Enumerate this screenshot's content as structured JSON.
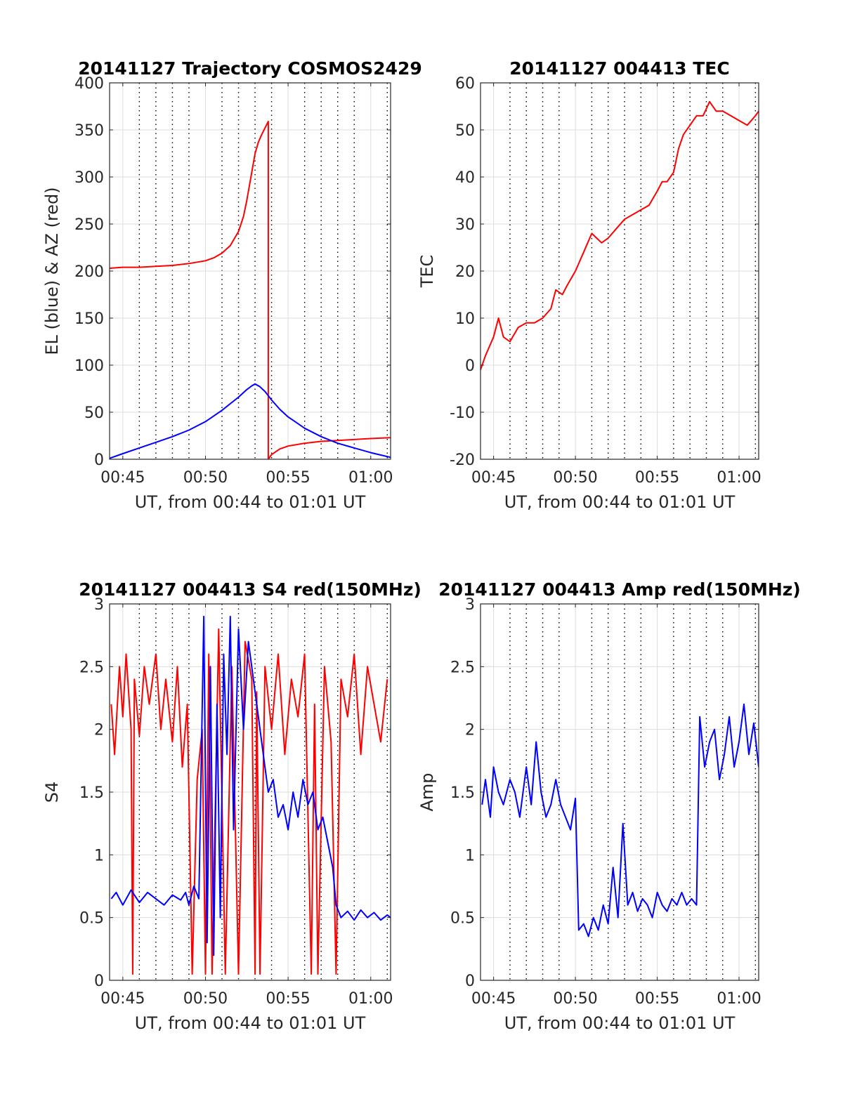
{
  "chart_data": [
    {
      "type": "line",
      "title": "20141127 Trajectory COSMOS2429",
      "xlabel": "UT, from 00:44 to 01:01 UT",
      "ylabel": "EL (blue) & AZ (red)",
      "xlim": [
        44.2,
        61.2
      ],
      "ylim": [
        0,
        400
      ],
      "xticks": [
        45,
        50,
        55,
        60
      ],
      "xtick_labels": [
        "00:45",
        "00:50",
        "00:55",
        "01:00"
      ],
      "yticks": [
        0,
        50,
        100,
        150,
        200,
        250,
        300,
        350,
        400
      ],
      "ytick_labels": [
        "0",
        "50",
        "100",
        "150",
        "200",
        "250",
        "300",
        "350",
        "400"
      ],
      "minor_grid": true,
      "series": [
        {
          "color": "#ff0000",
          "x": [
            44.2,
            45,
            46,
            47,
            48,
            49,
            50,
            50.5,
            51,
            51.5,
            52,
            52.3,
            52.5,
            52.8,
            53,
            53.2,
            53.4,
            53.6,
            53.8,
            53.8,
            54,
            54.5,
            55,
            56,
            57,
            58,
            59,
            60,
            61.2
          ],
          "y": [
            203,
            204,
            204,
            205,
            206,
            208,
            211,
            214,
            219,
            227,
            242,
            258,
            275,
            305,
            325,
            337,
            345,
            352,
            359,
            0,
            5,
            11,
            14,
            17,
            19,
            20,
            21,
            22,
            23
          ]
        },
        {
          "color": "#0000ff",
          "x": [
            44.2,
            45,
            46,
            47,
            48,
            49,
            50,
            50.5,
            51,
            51.5,
            52,
            52.5,
            52.8,
            53,
            53.3,
            53.6,
            54,
            54.5,
            55,
            55.5,
            56,
            57,
            58,
            59,
            60,
            61.2
          ],
          "y": [
            1,
            6,
            12,
            18,
            24,
            31,
            40,
            46,
            52,
            59,
            66,
            74,
            78,
            80,
            77,
            72,
            63,
            53,
            45,
            39,
            33,
            24,
            17,
            12,
            7,
            2
          ]
        }
      ]
    },
    {
      "type": "line",
      "title": "20141127 004413 TEC",
      "xlabel": "UT, from 00:44 to 01:01 UT",
      "ylabel": "TEC",
      "xlim": [
        44.2,
        61.2
      ],
      "ylim": [
        -20,
        60
      ],
      "xticks": [
        45,
        50,
        55,
        60
      ],
      "xtick_labels": [
        "00:45",
        "00:50",
        "00:55",
        "01:00"
      ],
      "yticks": [
        -20,
        -10,
        0,
        10,
        20,
        30,
        40,
        50,
        60
      ],
      "ytick_labels": [
        "-20",
        "-10",
        "0",
        "10",
        "20",
        "30",
        "40",
        "50",
        "60"
      ],
      "minor_grid": true,
      "series": [
        {
          "color": "#ff0000",
          "x": [
            44.2,
            44.5,
            45,
            45.3,
            45.6,
            46,
            46.5,
            47,
            47.5,
            48,
            48.5,
            48.8,
            49.2,
            49.5,
            50,
            50.5,
            51,
            51.3,
            51.6,
            52,
            52.5,
            53,
            53.5,
            54,
            54.5,
            55,
            55.3,
            55.6,
            56,
            56.3,
            56.6,
            57,
            57.4,
            57.8,
            58.2,
            58.6,
            59,
            59.5,
            60,
            60.5,
            61,
            61.2
          ],
          "y": [
            -1,
            2,
            6,
            10,
            6,
            5,
            8,
            9,
            9,
            10,
            12,
            16,
            15,
            17,
            20,
            24,
            28,
            27,
            26,
            27,
            29,
            31,
            32,
            33,
            34,
            37,
            39,
            39,
            41,
            46,
            49,
            51,
            53,
            53,
            56,
            54,
            54,
            53,
            52,
            51,
            53,
            54
          ]
        }
      ]
    },
    {
      "type": "line",
      "title": "20141127 004413 S4 red(150MHz)",
      "xlabel": "UT, from 00:44 to 01:01 UT",
      "ylabel": "S4",
      "xlim": [
        44.2,
        61.2
      ],
      "ylim": [
        0,
        3
      ],
      "xticks": [
        45,
        50,
        55,
        60
      ],
      "xtick_labels": [
        "00:45",
        "00:50",
        "00:55",
        "01:00"
      ],
      "yticks": [
        0,
        0.5,
        1,
        1.5,
        2,
        2.5,
        3
      ],
      "ytick_labels": [
        "0",
        "0.5",
        "1",
        "1.5",
        "2",
        "2.5",
        "3"
      ],
      "minor_grid": true,
      "series": [
        {
          "color": "#ff0000",
          "x": [
            44.3,
            44.5,
            44.8,
            45.0,
            45.2,
            45.5,
            45.6,
            45.7,
            46.0,
            46.3,
            46.6,
            47.0,
            47.3,
            47.6,
            48.0,
            48.3,
            48.6,
            48.9,
            49.2,
            49.5,
            49.8,
            50.0,
            50.2,
            50.4,
            50.8,
            51.2,
            51.6,
            52.0,
            52.4,
            52.8,
            53.0,
            53.1,
            53.3,
            53.6,
            54.0,
            54.4,
            54.8,
            55.2,
            55.6,
            56.0,
            56.4,
            56.6,
            56.8,
            57.2,
            57.6,
            57.9,
            58.2,
            58.6,
            59.0,
            59.4,
            59.8,
            60.2,
            60.6,
            61.0
          ],
          "y": [
            2.2,
            1.8,
            2.5,
            2.1,
            2.6,
            2.0,
            0.05,
            2.4,
            1.95,
            2.5,
            2.2,
            2.6,
            2.0,
            2.4,
            1.9,
            2.5,
            1.7,
            2.2,
            0.05,
            1.6,
            2.0,
            0.05,
            2.6,
            0.05,
            2.8,
            0.05,
            2.5,
            0.05,
            2.7,
            2.4,
            0.05,
            2.3,
            0.05,
            2.5,
            2.0,
            2.6,
            1.8,
            2.4,
            2.1,
            2.6,
            0.05,
            2.2,
            0.05,
            2.5,
            1.9,
            0.05,
            2.4,
            2.1,
            2.6,
            1.8,
            2.5,
            2.2,
            1.9,
            2.4
          ]
        },
        {
          "color": "#0000ff",
          "x": [
            44.3,
            44.6,
            45.0,
            45.5,
            46.0,
            46.5,
            47.0,
            47.5,
            48.0,
            48.5,
            48.8,
            49.0,
            49.3,
            49.6,
            49.9,
            50.1,
            50.3,
            50.5,
            50.7,
            50.9,
            51.1,
            51.3,
            51.5,
            51.7,
            52.0,
            52.3,
            52.6,
            52.9,
            53.2,
            53.5,
            53.8,
            54.1,
            54.4,
            54.7,
            55.0,
            55.3,
            55.6,
            55.9,
            56.2,
            56.5,
            56.8,
            57.1,
            57.4,
            57.7,
            57.9,
            58.2,
            58.6,
            59.0,
            59.4,
            59.8,
            60.2,
            60.6,
            61.0,
            61.2
          ],
          "y": [
            0.65,
            0.7,
            0.6,
            0.72,
            0.62,
            0.7,
            0.65,
            0.6,
            0.68,
            0.64,
            0.7,
            0.6,
            0.75,
            0.65,
            2.9,
            0.3,
            2.5,
            0.2,
            2.2,
            0.5,
            2.6,
            1.8,
            2.9,
            1.2,
            2.8,
            2.0,
            2.7,
            2.4,
            2.1,
            1.8,
            1.5,
            1.6,
            1.3,
            1.4,
            1.2,
            1.5,
            1.3,
            1.6,
            1.4,
            1.5,
            1.2,
            1.3,
            1.1,
            0.9,
            0.6,
            0.5,
            0.55,
            0.48,
            0.56,
            0.5,
            0.54,
            0.48,
            0.52,
            0.5
          ]
        }
      ]
    },
    {
      "type": "line",
      "title": "20141127 004413 Amp red(150MHz)",
      "xlabel": "UT, from 00:44 to 01:01 UT",
      "ylabel": "Amp",
      "xlim": [
        44.2,
        61.2
      ],
      "ylim": [
        0,
        3
      ],
      "xticks": [
        45,
        50,
        55,
        60
      ],
      "xtick_labels": [
        "00:45",
        "00:50",
        "00:55",
        "01:00"
      ],
      "yticks": [
        0,
        0.5,
        1,
        1.5,
        2,
        2.5,
        3
      ],
      "ytick_labels": [
        "0",
        "0.5",
        "1",
        "1.5",
        "2",
        "2.5",
        "3"
      ],
      "minor_grid": true,
      "series": [
        {
          "color": "#0000ff",
          "x": [
            44.3,
            44.5,
            44.8,
            45.0,
            45.3,
            45.6,
            46.0,
            46.3,
            46.6,
            47.0,
            47.3,
            47.6,
            47.9,
            48.2,
            48.5,
            48.8,
            49.1,
            49.4,
            49.7,
            50.0,
            50.2,
            50.5,
            50.8,
            51.1,
            51.4,
            51.7,
            52.0,
            52.3,
            52.6,
            52.9,
            53.2,
            53.5,
            53.8,
            54.1,
            54.4,
            54.7,
            55.0,
            55.3,
            55.6,
            55.9,
            56.2,
            56.5,
            56.8,
            57.1,
            57.4,
            57.6,
            57.9,
            58.2,
            58.5,
            58.8,
            59.1,
            59.4,
            59.7,
            60.0,
            60.3,
            60.6,
            60.9,
            61.2
          ],
          "y": [
            1.4,
            1.6,
            1.3,
            1.7,
            1.5,
            1.4,
            1.6,
            1.5,
            1.3,
            1.7,
            1.4,
            1.9,
            1.5,
            1.3,
            1.4,
            1.6,
            1.4,
            1.3,
            1.2,
            1.45,
            0.4,
            0.45,
            0.35,
            0.5,
            0.4,
            0.6,
            0.45,
            0.9,
            0.5,
            1.25,
            0.6,
            0.7,
            0.55,
            0.65,
            0.6,
            0.5,
            0.7,
            0.6,
            0.55,
            0.65,
            0.6,
            0.7,
            0.6,
            0.65,
            0.6,
            2.1,
            1.7,
            1.9,
            2.0,
            1.6,
            1.8,
            2.1,
            1.7,
            1.9,
            2.2,
            1.8,
            2.05,
            1.7
          ]
        }
      ]
    }
  ]
}
